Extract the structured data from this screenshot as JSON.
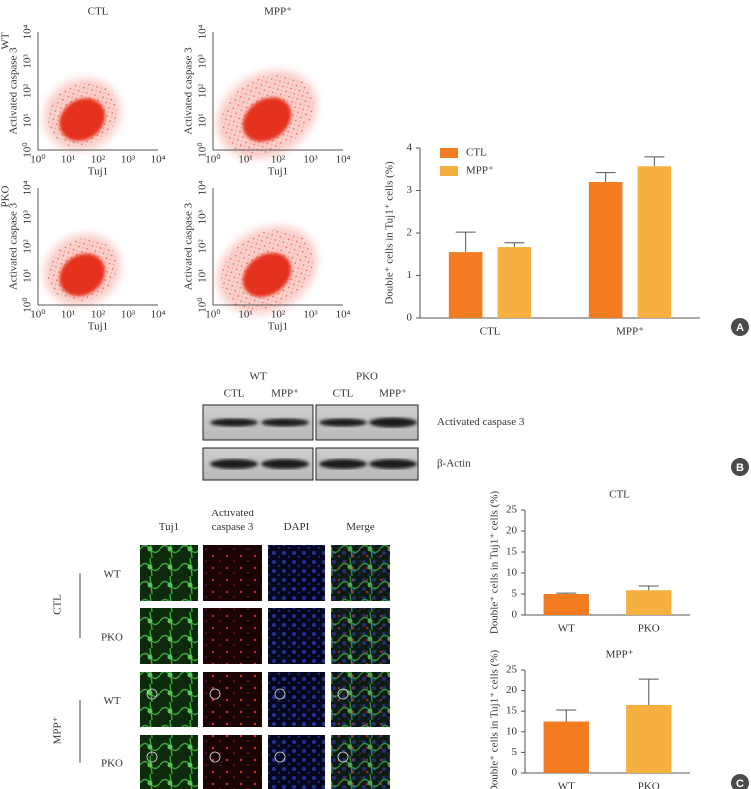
{
  "flow": {
    "columns": [
      "CTL",
      "MPP⁺"
    ],
    "rows": [
      "WT",
      "PKO"
    ],
    "x_label": "Tuj1",
    "y_label": "Activated caspase 3",
    "ticks": [
      "10⁰",
      "10¹",
      "10²",
      "10³",
      "10⁴"
    ]
  },
  "blot": {
    "groups": [
      "WT",
      "PKO"
    ],
    "lanes": [
      "CTL",
      "MPP⁺",
      "CTL",
      "MPP⁺"
    ],
    "bands": [
      "Activated caspase 3",
      "β-Actin"
    ]
  },
  "micro": {
    "columns": [
      "Tuj1",
      "Activated caspase 3",
      "DAPI",
      "Merge"
    ],
    "groups": [
      {
        "label": "CTL",
        "rows": [
          "WT",
          "PKO"
        ]
      },
      {
        "label": "MPP⁺",
        "rows": [
          "WT",
          "PKO"
        ]
      }
    ]
  },
  "panels": [
    "A",
    "B",
    "C"
  ],
  "chart_data": [
    {
      "type": "bar",
      "y_label": "Double⁺ cells in Tuj1⁺ cells (%)",
      "categories": [
        "CTL",
        "MPP⁺"
      ],
      "series": [
        {
          "name": "CTL",
          "color": "#f47c20",
          "values": [
            1.55,
            3.2
          ],
          "errors": [
            0.47,
            0.22
          ]
        },
        {
          "name": "MPP⁺",
          "color": "#f5b041",
          "values": [
            1.67,
            3.57
          ],
          "errors": [
            0.1,
            0.22
          ]
        }
      ],
      "ylim": [
        0,
        4
      ],
      "yticks": [
        0,
        1,
        2,
        3,
        4
      ],
      "legend": "upper left"
    },
    {
      "type": "bar",
      "title": "CTL",
      "y_label": "Double⁺ cells in Tuj1⁺ cells (%)",
      "categories": [
        "WT",
        "PKO"
      ],
      "values": [
        5.0,
        5.9
      ],
      "errors": [
        0.2,
        1.0
      ],
      "colors": [
        "#f47c20",
        "#f5b041"
      ],
      "ylim": [
        0,
        25
      ],
      "yticks": [
        0,
        5,
        10,
        15,
        20,
        25
      ]
    },
    {
      "type": "bar",
      "title": "MPP⁺",
      "y_label": "Double⁺ cells in Tuj1⁺ cells (%)",
      "categories": [
        "WT",
        "PKO"
      ],
      "values": [
        12.5,
        16.5
      ],
      "errors": [
        2.8,
        6.3
      ],
      "colors": [
        "#f47c20",
        "#f5b041"
      ],
      "ylim": [
        0,
        25
      ],
      "yticks": [
        0,
        5,
        10,
        15,
        20,
        25
      ]
    }
  ]
}
